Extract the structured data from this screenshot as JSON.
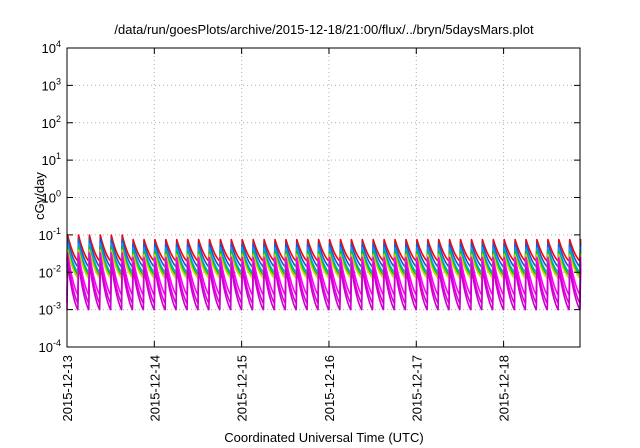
{
  "chart_data": {
    "type": "line",
    "title": "/data/run/goesPlots/archive/2015-12-18/21:00/flux/../bryn/5daysMars.plot",
    "xlabel": "Coordinated Universal Time (UTC)",
    "ylabel": "cGy/day",
    "y_scale": "log",
    "ylim": [
      0.0001,
      10000
    ],
    "y_ticks": [
      {
        "base": "10",
        "exp": "4"
      },
      {
        "base": "10",
        "exp": "3"
      },
      {
        "base": "10",
        "exp": "2"
      },
      {
        "base": "10",
        "exp": "1"
      },
      {
        "base": "10",
        "exp": "0"
      },
      {
        "base": "10",
        "exp": "-1"
      },
      {
        "base": "10",
        "exp": "-2"
      },
      {
        "base": "10",
        "exp": "-3"
      },
      {
        "base": "10",
        "exp": "-4"
      }
    ],
    "xlim": [
      "2015-12-13",
      "2015-12-18 21:00"
    ],
    "x_ticks": [
      "2015-12-13",
      "2015-12-14",
      "2015-12-15",
      "2015-12-16",
      "2015-12-17",
      "2015-12-18"
    ],
    "grid": true,
    "sawtooth_period_hours": 3,
    "series": [
      {
        "color": "#ff0000",
        "peak": 0.075,
        "trough": 0.02
      },
      {
        "color": "#2255cc",
        "peak": 0.06,
        "trough": 0.014
      },
      {
        "color": "#00a0ff",
        "peak": 0.045,
        "trough": 0.01
      },
      {
        "color": "#00cc00",
        "peak": 0.035,
        "trough": 0.0085
      },
      {
        "color": "#d0d000",
        "peak": 0.03,
        "trough": 0.007
      },
      {
        "color": "#ff00ff",
        "peak": 0.025,
        "trough": 0.0025
      },
      {
        "color": "#e000e0",
        "peak": 0.018,
        "trough": 0.0015
      },
      {
        "color": "#cc00cc",
        "peak": 0.013,
        "trough": 0.001
      }
    ]
  }
}
